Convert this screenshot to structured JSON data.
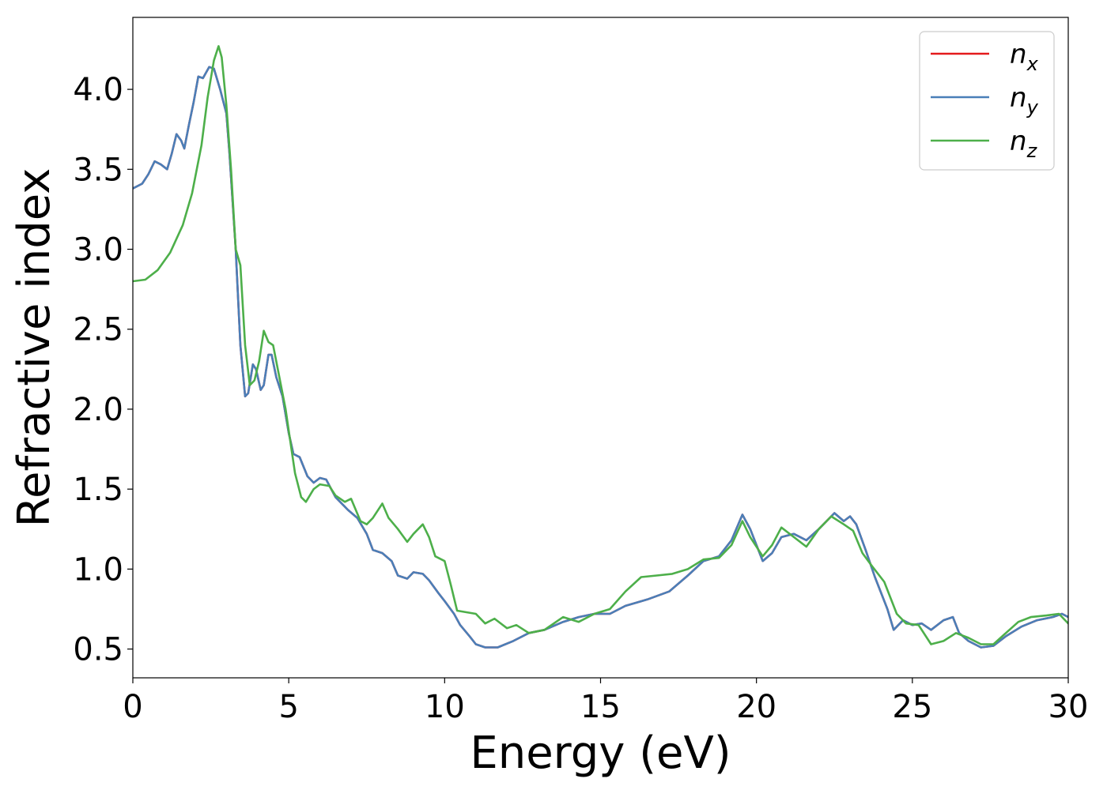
{
  "chart_data": {
    "type": "line",
    "title": "",
    "xlabel": "Energy (eV)",
    "ylabel": "Refractive index",
    "xlim": [
      0,
      30
    ],
    "ylim": [
      0.32,
      4.45
    ],
    "xticks": [
      0,
      5,
      10,
      15,
      20,
      25,
      30
    ],
    "xtick_labels": [
      "0",
      "5",
      "10",
      "15",
      "20",
      "25",
      "30"
    ],
    "yticks": [
      0.5,
      1.0,
      1.5,
      2.0,
      2.5,
      3.0,
      3.5,
      4.0
    ],
    "ytick_labels": [
      "0.5",
      "1.0",
      "1.5",
      "2.0",
      "2.5",
      "3.0",
      "3.5",
      "4.0"
    ],
    "grid": false,
    "legend_position": "top-right",
    "series": [
      {
        "name": "n_x",
        "label_base": "n",
        "label_sub": "x",
        "color": "#e41a1c",
        "points": [
          [
            0,
            3.38
          ],
          [
            0.3,
            3.41
          ],
          [
            0.5,
            3.47
          ],
          [
            0.7,
            3.55
          ],
          [
            0.9,
            3.53
          ],
          [
            1.1,
            3.5
          ],
          [
            1.25,
            3.6
          ],
          [
            1.4,
            3.72
          ],
          [
            1.55,
            3.68
          ],
          [
            1.65,
            3.63
          ],
          [
            1.8,
            3.78
          ],
          [
            1.95,
            3.92
          ],
          [
            2.1,
            4.08
          ],
          [
            2.25,
            4.07
          ],
          [
            2.45,
            4.14
          ],
          [
            2.6,
            4.13
          ],
          [
            2.8,
            4.0
          ],
          [
            3.0,
            3.85
          ],
          [
            3.1,
            3.6
          ],
          [
            3.3,
            3.0
          ],
          [
            3.45,
            2.4
          ],
          [
            3.6,
            2.08
          ],
          [
            3.7,
            2.1
          ],
          [
            3.85,
            2.28
          ],
          [
            3.95,
            2.25
          ],
          [
            4.1,
            2.12
          ],
          [
            4.2,
            2.15
          ],
          [
            4.35,
            2.34
          ],
          [
            4.45,
            2.34
          ],
          [
            4.6,
            2.2
          ],
          [
            4.8,
            2.08
          ],
          [
            5.0,
            1.85
          ],
          [
            5.15,
            1.72
          ],
          [
            5.35,
            1.7
          ],
          [
            5.6,
            1.58
          ],
          [
            5.8,
            1.54
          ],
          [
            6.0,
            1.57
          ],
          [
            6.2,
            1.56
          ],
          [
            6.5,
            1.45
          ],
          [
            6.9,
            1.37
          ],
          [
            7.2,
            1.32
          ],
          [
            7.5,
            1.22
          ],
          [
            7.7,
            1.12
          ],
          [
            8.0,
            1.1
          ],
          [
            8.3,
            1.05
          ],
          [
            8.5,
            0.96
          ],
          [
            8.8,
            0.94
          ],
          [
            9.0,
            0.98
          ],
          [
            9.3,
            0.97
          ],
          [
            9.5,
            0.93
          ],
          [
            9.8,
            0.85
          ],
          [
            10.0,
            0.8
          ],
          [
            10.3,
            0.72
          ],
          [
            10.5,
            0.65
          ],
          [
            10.8,
            0.58
          ],
          [
            11.0,
            0.53
          ],
          [
            11.3,
            0.51
          ],
          [
            11.7,
            0.51
          ],
          [
            12.2,
            0.55
          ],
          [
            12.7,
            0.6
          ],
          [
            13.2,
            0.62
          ],
          [
            13.8,
            0.67
          ],
          [
            14.3,
            0.7
          ],
          [
            14.8,
            0.72
          ],
          [
            15.3,
            0.72
          ],
          [
            15.8,
            0.77
          ],
          [
            16.5,
            0.81
          ],
          [
            17.2,
            0.86
          ],
          [
            17.8,
            0.96
          ],
          [
            18.3,
            1.05
          ],
          [
            18.8,
            1.08
          ],
          [
            19.2,
            1.18
          ],
          [
            19.55,
            1.34
          ],
          [
            19.8,
            1.25
          ],
          [
            20.2,
            1.05
          ],
          [
            20.5,
            1.1
          ],
          [
            20.8,
            1.2
          ],
          [
            21.2,
            1.22
          ],
          [
            21.6,
            1.18
          ],
          [
            22.0,
            1.25
          ],
          [
            22.5,
            1.35
          ],
          [
            22.8,
            1.3
          ],
          [
            23.0,
            1.33
          ],
          [
            23.2,
            1.28
          ],
          [
            23.5,
            1.12
          ],
          [
            23.8,
            0.95
          ],
          [
            24.2,
            0.75
          ],
          [
            24.4,
            0.62
          ],
          [
            24.7,
            0.68
          ],
          [
            25.0,
            0.65
          ],
          [
            25.3,
            0.66
          ],
          [
            25.6,
            0.62
          ],
          [
            26.0,
            0.68
          ],
          [
            26.3,
            0.7
          ],
          [
            26.5,
            0.6
          ],
          [
            26.8,
            0.55
          ],
          [
            27.2,
            0.51
          ],
          [
            27.6,
            0.52
          ],
          [
            28.0,
            0.58
          ],
          [
            28.5,
            0.64
          ],
          [
            29.0,
            0.68
          ],
          [
            29.5,
            0.7
          ],
          [
            29.8,
            0.72
          ],
          [
            30.0,
            0.7
          ]
        ]
      },
      {
        "name": "n_y",
        "label_base": "n",
        "label_sub": "y",
        "color": "#4a7fb8",
        "points": [
          [
            0,
            3.38
          ],
          [
            0.3,
            3.41
          ],
          [
            0.5,
            3.47
          ],
          [
            0.7,
            3.55
          ],
          [
            0.9,
            3.53
          ],
          [
            1.1,
            3.5
          ],
          [
            1.25,
            3.6
          ],
          [
            1.4,
            3.72
          ],
          [
            1.55,
            3.68
          ],
          [
            1.65,
            3.63
          ],
          [
            1.8,
            3.78
          ],
          [
            1.95,
            3.92
          ],
          [
            2.1,
            4.08
          ],
          [
            2.25,
            4.07
          ],
          [
            2.45,
            4.14
          ],
          [
            2.6,
            4.13
          ],
          [
            2.8,
            4.0
          ],
          [
            3.0,
            3.85
          ],
          [
            3.1,
            3.6
          ],
          [
            3.3,
            3.0
          ],
          [
            3.45,
            2.4
          ],
          [
            3.6,
            2.08
          ],
          [
            3.7,
            2.1
          ],
          [
            3.85,
            2.28
          ],
          [
            3.95,
            2.25
          ],
          [
            4.1,
            2.12
          ],
          [
            4.2,
            2.15
          ],
          [
            4.35,
            2.34
          ],
          [
            4.45,
            2.34
          ],
          [
            4.6,
            2.2
          ],
          [
            4.8,
            2.08
          ],
          [
            5.0,
            1.85
          ],
          [
            5.15,
            1.72
          ],
          [
            5.35,
            1.7
          ],
          [
            5.6,
            1.58
          ],
          [
            5.8,
            1.54
          ],
          [
            6.0,
            1.57
          ],
          [
            6.2,
            1.56
          ],
          [
            6.5,
            1.45
          ],
          [
            6.9,
            1.37
          ],
          [
            7.2,
            1.32
          ],
          [
            7.5,
            1.22
          ],
          [
            7.7,
            1.12
          ],
          [
            8.0,
            1.1
          ],
          [
            8.3,
            1.05
          ],
          [
            8.5,
            0.96
          ],
          [
            8.8,
            0.94
          ],
          [
            9.0,
            0.98
          ],
          [
            9.3,
            0.97
          ],
          [
            9.5,
            0.93
          ],
          [
            9.8,
            0.85
          ],
          [
            10.0,
            0.8
          ],
          [
            10.3,
            0.72
          ],
          [
            10.5,
            0.65
          ],
          [
            10.8,
            0.58
          ],
          [
            11.0,
            0.53
          ],
          [
            11.3,
            0.51
          ],
          [
            11.7,
            0.51
          ],
          [
            12.2,
            0.55
          ],
          [
            12.7,
            0.6
          ],
          [
            13.2,
            0.62
          ],
          [
            13.8,
            0.67
          ],
          [
            14.3,
            0.7
          ],
          [
            14.8,
            0.72
          ],
          [
            15.3,
            0.72
          ],
          [
            15.8,
            0.77
          ],
          [
            16.5,
            0.81
          ],
          [
            17.2,
            0.86
          ],
          [
            17.8,
            0.96
          ],
          [
            18.3,
            1.05
          ],
          [
            18.8,
            1.08
          ],
          [
            19.2,
            1.18
          ],
          [
            19.55,
            1.34
          ],
          [
            19.8,
            1.25
          ],
          [
            20.2,
            1.05
          ],
          [
            20.5,
            1.1
          ],
          [
            20.8,
            1.2
          ],
          [
            21.2,
            1.22
          ],
          [
            21.6,
            1.18
          ],
          [
            22.0,
            1.25
          ],
          [
            22.5,
            1.35
          ],
          [
            22.8,
            1.3
          ],
          [
            23.0,
            1.33
          ],
          [
            23.2,
            1.28
          ],
          [
            23.5,
            1.12
          ],
          [
            23.8,
            0.95
          ],
          [
            24.2,
            0.75
          ],
          [
            24.4,
            0.62
          ],
          [
            24.7,
            0.68
          ],
          [
            25.0,
            0.65
          ],
          [
            25.3,
            0.66
          ],
          [
            25.6,
            0.62
          ],
          [
            26.0,
            0.68
          ],
          [
            26.3,
            0.7
          ],
          [
            26.5,
            0.6
          ],
          [
            26.8,
            0.55
          ],
          [
            27.2,
            0.51
          ],
          [
            27.6,
            0.52
          ],
          [
            28.0,
            0.58
          ],
          [
            28.5,
            0.64
          ],
          [
            29.0,
            0.68
          ],
          [
            29.5,
            0.7
          ],
          [
            29.8,
            0.72
          ],
          [
            30.0,
            0.7
          ]
        ]
      },
      {
        "name": "n_z",
        "label_base": "n",
        "label_sub": "z",
        "color": "#4daf4a",
        "points": [
          [
            0,
            2.8
          ],
          [
            0.4,
            2.81
          ],
          [
            0.8,
            2.87
          ],
          [
            1.2,
            2.98
          ],
          [
            1.6,
            3.15
          ],
          [
            1.9,
            3.35
          ],
          [
            2.2,
            3.65
          ],
          [
            2.4,
            3.95
          ],
          [
            2.6,
            4.18
          ],
          [
            2.75,
            4.27
          ],
          [
            2.85,
            4.2
          ],
          [
            3.0,
            3.9
          ],
          [
            3.15,
            3.5
          ],
          [
            3.3,
            3.0
          ],
          [
            3.45,
            2.9
          ],
          [
            3.6,
            2.4
          ],
          [
            3.75,
            2.15
          ],
          [
            3.9,
            2.18
          ],
          [
            4.05,
            2.3
          ],
          [
            4.2,
            2.49
          ],
          [
            4.35,
            2.42
          ],
          [
            4.5,
            2.4
          ],
          [
            4.7,
            2.2
          ],
          [
            4.9,
            2.0
          ],
          [
            5.05,
            1.8
          ],
          [
            5.2,
            1.6
          ],
          [
            5.4,
            1.45
          ],
          [
            5.55,
            1.42
          ],
          [
            5.8,
            1.5
          ],
          [
            6.0,
            1.53
          ],
          [
            6.3,
            1.52
          ],
          [
            6.5,
            1.46
          ],
          [
            6.8,
            1.42
          ],
          [
            7.0,
            1.44
          ],
          [
            7.3,
            1.3
          ],
          [
            7.5,
            1.28
          ],
          [
            7.7,
            1.32
          ],
          [
            8.0,
            1.41
          ],
          [
            8.2,
            1.32
          ],
          [
            8.5,
            1.25
          ],
          [
            8.8,
            1.17
          ],
          [
            9.0,
            1.22
          ],
          [
            9.3,
            1.28
          ],
          [
            9.5,
            1.2
          ],
          [
            9.7,
            1.08
          ],
          [
            10.0,
            1.05
          ],
          [
            10.2,
            0.9
          ],
          [
            10.4,
            0.74
          ],
          [
            10.7,
            0.73
          ],
          [
            11.0,
            0.72
          ],
          [
            11.3,
            0.66
          ],
          [
            11.6,
            0.69
          ],
          [
            12.0,
            0.63
          ],
          [
            12.3,
            0.65
          ],
          [
            12.7,
            0.6
          ],
          [
            13.2,
            0.62
          ],
          [
            13.8,
            0.7
          ],
          [
            14.3,
            0.67
          ],
          [
            14.8,
            0.72
          ],
          [
            15.3,
            0.75
          ],
          [
            15.8,
            0.86
          ],
          [
            16.3,
            0.95
          ],
          [
            16.8,
            0.96
          ],
          [
            17.3,
            0.97
          ],
          [
            17.8,
            1.0
          ],
          [
            18.3,
            1.06
          ],
          [
            18.8,
            1.07
          ],
          [
            19.2,
            1.15
          ],
          [
            19.55,
            1.3
          ],
          [
            19.8,
            1.2
          ],
          [
            20.2,
            1.08
          ],
          [
            20.5,
            1.15
          ],
          [
            20.8,
            1.26
          ],
          [
            21.2,
            1.2
          ],
          [
            21.6,
            1.14
          ],
          [
            22.0,
            1.25
          ],
          [
            22.4,
            1.33
          ],
          [
            22.8,
            1.28
          ],
          [
            23.1,
            1.24
          ],
          [
            23.4,
            1.1
          ],
          [
            23.7,
            1.02
          ],
          [
            24.1,
            0.92
          ],
          [
            24.5,
            0.72
          ],
          [
            24.8,
            0.66
          ],
          [
            25.2,
            0.65
          ],
          [
            25.6,
            0.53
          ],
          [
            26.0,
            0.55
          ],
          [
            26.4,
            0.6
          ],
          [
            26.8,
            0.57
          ],
          [
            27.2,
            0.53
          ],
          [
            27.6,
            0.53
          ],
          [
            28.0,
            0.6
          ],
          [
            28.4,
            0.67
          ],
          [
            28.8,
            0.7
          ],
          [
            29.3,
            0.71
          ],
          [
            29.7,
            0.72
          ],
          [
            30.0,
            0.66
          ]
        ]
      }
    ]
  }
}
